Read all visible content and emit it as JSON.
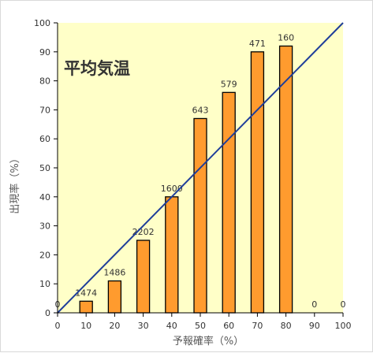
{
  "chart_data": {
    "type": "bar",
    "title": "平均気温",
    "xlabel": "予報確率（%）",
    "ylabel": "出現率（%）",
    "xlim": [
      0,
      100
    ],
    "ylim": [
      0,
      100
    ],
    "x_ticks": [
      "0",
      "10",
      "20",
      "30",
      "40",
      "50",
      "60",
      "70",
      "80",
      "90",
      "100"
    ],
    "y_ticks": [
      "0",
      "10",
      "20",
      "30",
      "40",
      "50",
      "60",
      "70",
      "80",
      "90",
      "100"
    ],
    "grid": false,
    "x": [
      0,
      10,
      20,
      30,
      40,
      50,
      60,
      70,
      80,
      90,
      100
    ],
    "values": [
      0,
      4,
      11,
      25,
      40,
      67,
      76,
      90,
      92,
      0,
      0
    ],
    "data_labels": [
      "0",
      "1474",
      "1486",
      "2202",
      "1600",
      "643",
      "579",
      "471",
      "160",
      "0",
      "0"
    ],
    "reference_line": {
      "type": "line",
      "x": [
        0,
        100
      ],
      "y": [
        0,
        100
      ]
    },
    "colors": {
      "plot_background": "#FFFFC8",
      "bar_fill": "#FF9B2E",
      "bar_stroke": "#000000",
      "reference_line": "#1F3E9A",
      "axis": "#000000"
    }
  }
}
